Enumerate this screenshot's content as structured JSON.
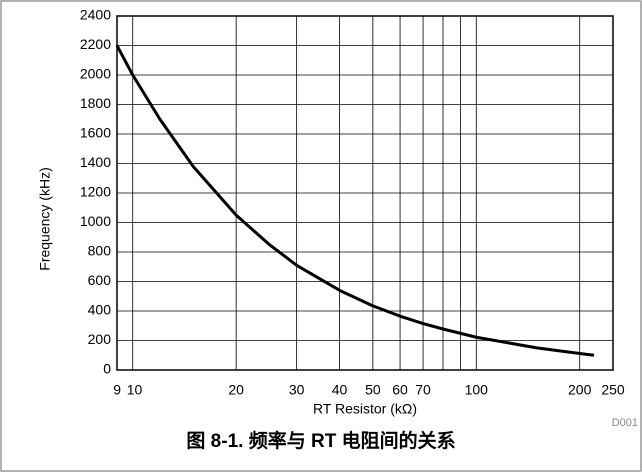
{
  "chart_data": {
    "type": "line",
    "title": "图 8-1. 频率与 RT 电阻间的关系",
    "xlabel": "RT Resistor (kΩ)",
    "ylabel": "Frequency (kHz)",
    "note": "D001",
    "xscale": "log",
    "xlim": [
      9,
      250
    ],
    "xticks": [
      9,
      10,
      20,
      30,
      40,
      50,
      60,
      70,
      100,
      200,
      250
    ],
    "xminorticks": [
      80,
      90
    ],
    "ylim": [
      0,
      2400
    ],
    "yticks": [
      0,
      200,
      400,
      600,
      800,
      1000,
      1200,
      1400,
      1600,
      1800,
      2000,
      2200,
      2400
    ],
    "grid": true,
    "x": [
      9,
      10,
      12,
      15,
      20,
      25,
      30,
      40,
      50,
      60,
      70,
      80,
      100,
      150,
      200,
      220
    ],
    "series": [
      {
        "color": "#000000",
        "values": [
          2200,
          2000,
          1700,
          1380,
          1050,
          850,
          710,
          540,
          435,
          365,
          315,
          278,
          222,
          150,
          112,
          100
        ]
      }
    ]
  }
}
